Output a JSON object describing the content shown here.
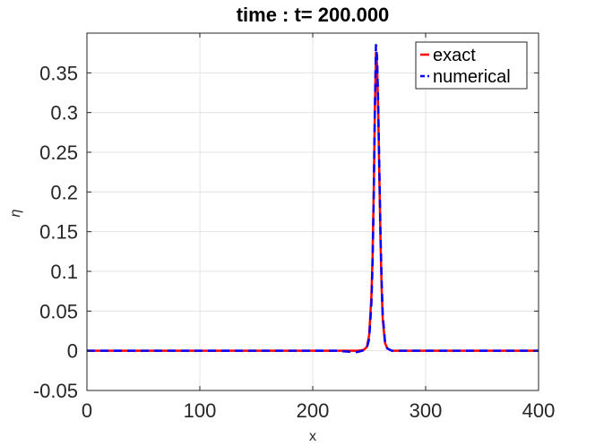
{
  "chart_data": {
    "type": "line",
    "title": "time : t= 200.000",
    "xlabel": "x",
    "ylabel": "η",
    "xlim": [
      0,
      400
    ],
    "ylim": [
      -0.05,
      0.4
    ],
    "xticks": [
      0,
      100,
      200,
      300,
      400
    ],
    "xtick_labels": [
      "0",
      "100",
      "200",
      "300",
      "400"
    ],
    "yticks": [
      -0.05,
      0,
      0.05,
      0.1,
      0.15,
      0.2,
      0.25,
      0.3,
      0.35
    ],
    "ytick_labels": [
      "-0.05",
      "0",
      "0.05",
      "0.1",
      "0.15",
      "0.2",
      "0.25",
      "0.3",
      "0.35"
    ],
    "grid": true,
    "legend_position": "top-right",
    "series": [
      {
        "name": "exact",
        "color": "#ff0000",
        "style": "solid",
        "x": [
          0,
          230,
          240,
          245,
          248,
          250,
          252,
          253,
          254,
          255,
          256,
          257,
          258,
          259,
          260,
          261,
          262,
          264,
          266,
          270,
          280,
          400
        ],
        "y": [
          0,
          0,
          0,
          0.001,
          0.005,
          0.02,
          0.07,
          0.12,
          0.2,
          0.3,
          0.375,
          0.36,
          0.3,
          0.22,
          0.14,
          0.08,
          0.04,
          0.01,
          0.003,
          0,
          0,
          0
        ]
      },
      {
        "name": "numerical",
        "color": "#0000ff",
        "style": "dashed",
        "x": [
          0,
          220,
          230,
          238,
          244,
          248,
          250,
          252,
          253,
          254,
          255,
          256,
          257,
          258,
          259,
          260,
          261,
          262,
          264,
          266,
          270,
          280,
          400
        ],
        "y": [
          0,
          0,
          -0.001,
          -0.002,
          0,
          0.004,
          0.015,
          0.06,
          0.11,
          0.19,
          0.3,
          0.385,
          0.37,
          0.31,
          0.23,
          0.15,
          0.09,
          0.045,
          0.012,
          0.003,
          0,
          0,
          0
        ]
      }
    ]
  }
}
